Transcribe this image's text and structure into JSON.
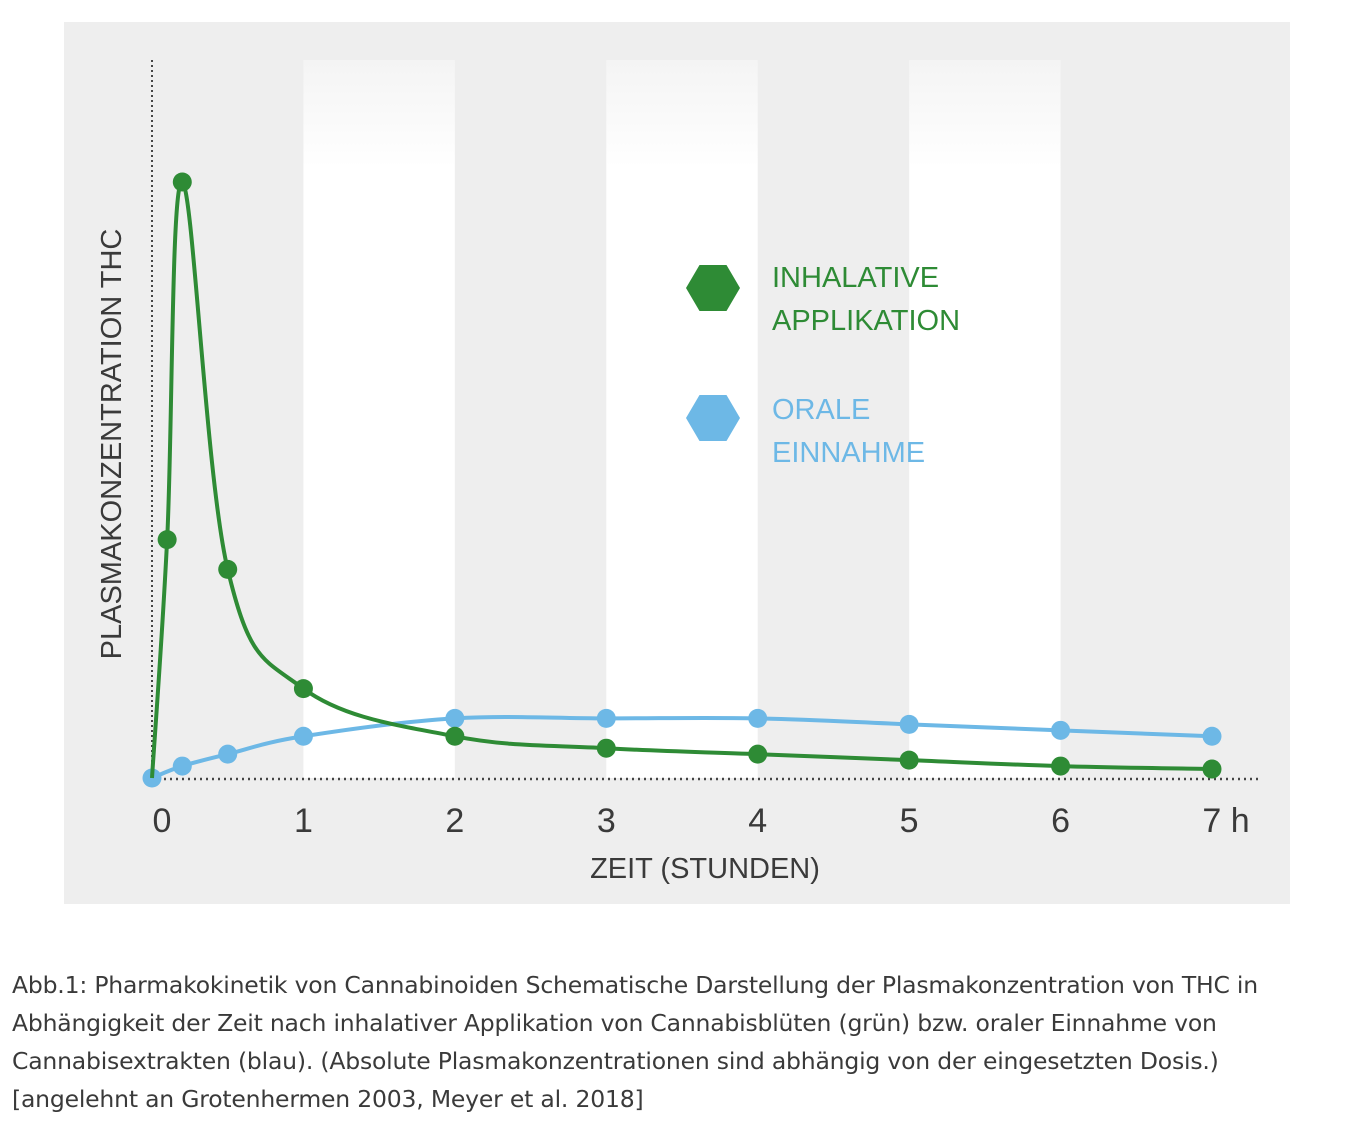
{
  "chart_data": {
    "type": "line",
    "x_tick_labels": [
      "0",
      "1",
      "2",
      "3",
      "4",
      "5",
      "6",
      "7 h"
    ],
    "xlabel": "ZEIT (STUNDEN)",
    "ylabel": "PLASMAKONZENTRATION THC",
    "xlim": [
      0,
      7
    ],
    "ylim": [
      0,
      1
    ],
    "grid": "alternating vertical bands",
    "legend_position": "center-right",
    "y_ticks_shown": false,
    "series": [
      {
        "name": "INHALATIVE APPLIKATION",
        "legend_lines": [
          "INHALATIVE",
          "APPLIKATION"
        ],
        "color": "#2e8b35",
        "points": [
          {
            "x": 0.1,
            "y": 0.4
          },
          {
            "x": 0.2,
            "y": 1.0
          },
          {
            "x": 0.5,
            "y": 0.35
          },
          {
            "x": 1.0,
            "y": 0.15
          },
          {
            "x": 2.0,
            "y": 0.07
          },
          {
            "x": 3.0,
            "y": 0.05
          },
          {
            "x": 4.0,
            "y": 0.04
          },
          {
            "x": 5.0,
            "y": 0.03
          },
          {
            "x": 6.0,
            "y": 0.02
          },
          {
            "x": 7.0,
            "y": 0.015
          }
        ]
      },
      {
        "name": "ORALE EINNAHME",
        "legend_lines": [
          "ORALE",
          "EINNAHME"
        ],
        "color": "#6db8e6",
        "points": [
          {
            "x": 0.0,
            "y": 0.0
          },
          {
            "x": 0.2,
            "y": 0.02
          },
          {
            "x": 0.5,
            "y": 0.04
          },
          {
            "x": 1.0,
            "y": 0.07
          },
          {
            "x": 2.0,
            "y": 0.1
          },
          {
            "x": 3.0,
            "y": 0.1
          },
          {
            "x": 4.0,
            "y": 0.1
          },
          {
            "x": 5.0,
            "y": 0.09
          },
          {
            "x": 6.0,
            "y": 0.08
          },
          {
            "x": 7.0,
            "y": 0.07
          }
        ]
      }
    ]
  },
  "caption": {
    "lines": [
      "Abb.1: Pharmakokinetik von Cannabinoiden Schematische Darstellung der Plasmakonzentration von THC in",
      "Abhängigkeit der Zeit nach inhalativer Applikation von Cannabisblüten (grün) bzw. oraler Einnahme von",
      "Cannabisextrakten (blau). (Absolute Plasmakonzentrationen sind abhängig von der eingesetzten Dosis.)",
      "[angelehnt an Grotenhermen 2003, Meyer et al. 2018]"
    ]
  }
}
